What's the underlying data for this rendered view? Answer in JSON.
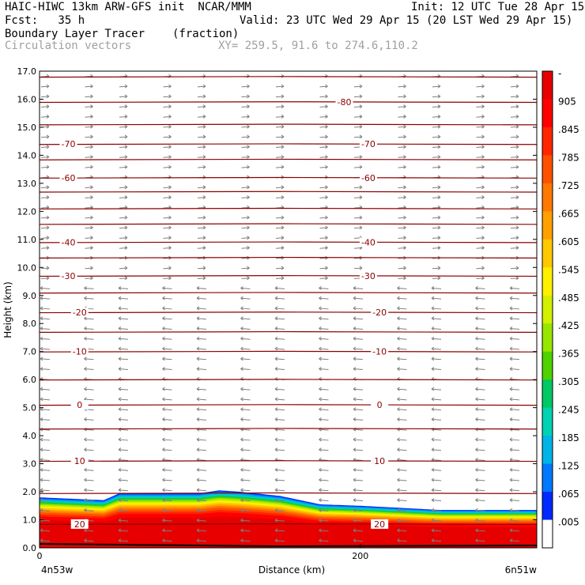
{
  "header": {
    "line1_left": "HAIC-HIWC 13km ARW-GFS init  NCAR/MMM",
    "line1_right": "Init: 12 UTC Tue 28 Apr 15",
    "line2_left": "Fcst:   35 h",
    "line2_right": "Valid: 23 UTC Wed 29 Apr 15 (20 LST Wed 29 Apr 15)",
    "line3_left": "Boundary Layer Tracer",
    "line3_mid": "(fraction)",
    "line4_left": "Circulation vectors",
    "line4_mid": "XY= 259.5, 91.6 to 274.6,110.2"
  },
  "chart_data": {
    "type": "heatmap",
    "ylabel": "Height (km)",
    "xlabel": "Distance (km)",
    "ylim": [
      0,
      17
    ],
    "xlim": [
      0,
      310
    ],
    "y_ticks": [
      "0.0",
      "1.0",
      "2.0",
      "3.0",
      "4.0",
      "5.0",
      "6.0",
      "7.0",
      "8.0",
      "9.0",
      "10.0",
      "11.0",
      "12.0",
      "13.0",
      "14.0",
      "15.0",
      "16.0",
      "17.0"
    ],
    "x_ticks": [
      {
        "value": 0,
        "label": "0"
      },
      {
        "value": 200,
        "label": "200"
      }
    ],
    "x_endpoint_left": "4n53w",
    "x_endpoint_right": "6n51w",
    "colorbar": {
      "labels": [
        "-",
        "905",
        ".845",
        ".785",
        ".725",
        ".665",
        ".605",
        ".545",
        ".485",
        ".425",
        ".365",
        ".305",
        ".245",
        ".185",
        ".125",
        ".065",
        ".005"
      ],
      "colors": [
        "#e60000",
        "#ff0000",
        "#ff2600",
        "#ff5000",
        "#ff7800",
        "#ffa000",
        "#ffc800",
        "#fff000",
        "#d2f000",
        "#96e600",
        "#50d200",
        "#00c864",
        "#00d2b4",
        "#00b4e6",
        "#0078ff",
        "#0028ff",
        "#ffffff"
      ]
    },
    "tracer_layer_top_km": [
      {
        "x": 0,
        "y": 1.8
      },
      {
        "x": 40,
        "y": 1.7
      },
      {
        "x": 50,
        "y": 1.95
      },
      {
        "x": 100,
        "y": 1.95
      },
      {
        "x": 112,
        "y": 2.05
      },
      {
        "x": 125,
        "y": 2.0
      },
      {
        "x": 150,
        "y": 1.85
      },
      {
        "x": 175,
        "y": 1.55
      },
      {
        "x": 200,
        "y": 1.5
      },
      {
        "x": 250,
        "y": 1.35
      },
      {
        "x": 310,
        "y": 1.35
      }
    ],
    "temperature_contours": [
      {
        "value": 20,
        "label": "20",
        "y_km": 0.85,
        "label_x": [
          25,
          212
        ]
      },
      {
        "value": 10,
        "label": "10",
        "y_km": 3.1,
        "label_x": [
          25,
          212
        ]
      },
      {
        "value": 0,
        "label": "0",
        "y_km": 5.1,
        "label_x": [
          25,
          212
        ]
      },
      {
        "value": -10,
        "label": "-10",
        "y_km": 7.0,
        "label_x": [
          25,
          212
        ]
      },
      {
        "value": -20,
        "label": "-20",
        "y_km": 8.4,
        "label_x": [
          25,
          212
        ]
      },
      {
        "value": -30,
        "label": "-30",
        "y_km": 9.7,
        "label_x": [
          18,
          205
        ]
      },
      {
        "value": -40,
        "label": "-40",
        "y_km": 10.9,
        "label_x": [
          18,
          205
        ]
      },
      {
        "value": -60,
        "label": "-60",
        "y_km": 13.2,
        "label_x": [
          18,
          205
        ]
      },
      {
        "value": -70,
        "label": "-70",
        "y_km": 14.4,
        "label_x": [
          18,
          205
        ]
      },
      {
        "value": -80,
        "label": "-80",
        "y_km": 15.9,
        "label_x": [
          190,
          190
        ]
      }
    ],
    "grid": false,
    "legend": "colorbar-right"
  }
}
